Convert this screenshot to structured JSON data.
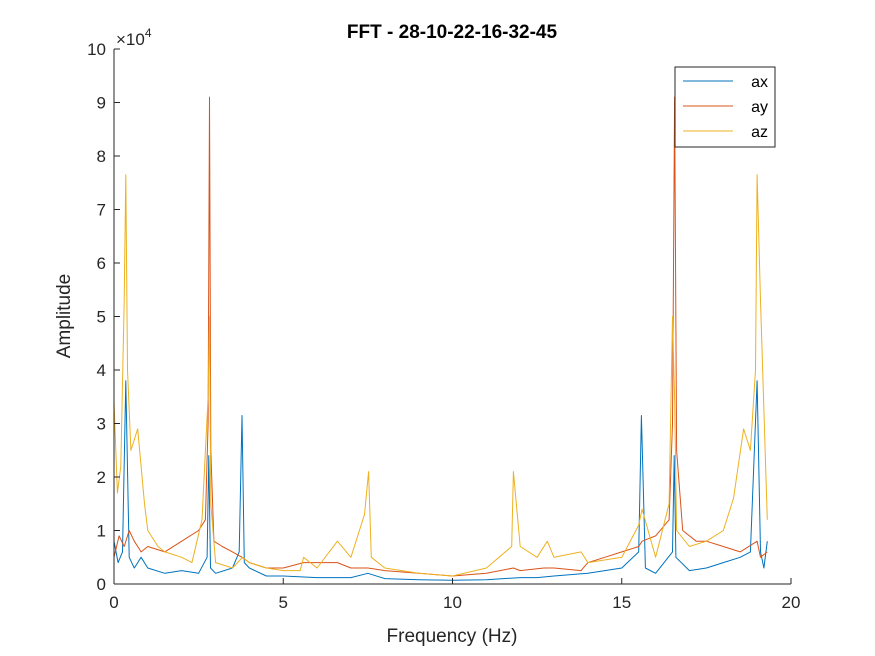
{
  "chart_data": {
    "type": "line",
    "title": "FFT - 28-10-22-16-32-45",
    "xlabel": "Frequency (Hz)",
    "ylabel": "Amplitude",
    "xlim": [
      0,
      20
    ],
    "ylim": [
      0,
      100000
    ],
    "y_exponent_label": "×10",
    "y_exponent_power": "4",
    "x_ticks": [
      0,
      5,
      10,
      15,
      20
    ],
    "x_tick_labels": [
      "0",
      "5",
      "10",
      "15",
      "20"
    ],
    "y_ticks": [
      0,
      10000,
      20000,
      30000,
      40000,
      50000,
      60000,
      70000,
      80000,
      90000,
      100000
    ],
    "y_tick_labels": [
      "0",
      "1",
      "2",
      "3",
      "4",
      "5",
      "6",
      "7",
      "8",
      "9",
      "10"
    ],
    "grid": false,
    "legend_position": "top-right",
    "series": [
      {
        "name": "ax",
        "color": "#0072BD",
        "x": [
          0,
          0.12,
          0.25,
          0.35,
          0.45,
          0.6,
          0.8,
          1.0,
          1.5,
          2.0,
          2.5,
          2.75,
          2.8,
          2.85,
          3.0,
          3.5,
          3.7,
          3.78,
          3.85,
          4.0,
          4.5,
          5.0,
          6.0,
          7.0,
          7.5,
          8.0,
          9.0,
          10.0,
          11.0,
          12.0,
          12.5,
          13.0,
          14.0,
          15.0,
          15.5,
          15.58,
          15.7,
          16.0,
          16.5,
          16.55,
          16.6,
          17.0,
          17.5,
          18.0,
          18.5,
          18.8,
          19.0,
          19.1,
          19.2,
          19.3
        ],
        "values": [
          8000,
          4000,
          6000,
          38000,
          5000,
          3000,
          5000,
          3000,
          2000,
          2500,
          2000,
          5000,
          24000,
          3000,
          2000,
          3000,
          6000,
          31500,
          4000,
          3000,
          1500,
          1500,
          1200,
          1200,
          2000,
          1000,
          800,
          700,
          800,
          1200,
          1200,
          1500,
          2000,
          3000,
          6000,
          31500,
          3000,
          2000,
          6000,
          24000,
          5000,
          2500,
          3000,
          4000,
          5000,
          6000,
          38000,
          6000,
          3000,
          8000
        ]
      },
      {
        "name": "ay",
        "color": "#D95319",
        "x": [
          0,
          0.15,
          0.3,
          0.45,
          0.6,
          0.8,
          1.0,
          1.5,
          2.0,
          2.5,
          2.7,
          2.78,
          2.82,
          2.86,
          2.95,
          3.2,
          3.5,
          3.78,
          4.0,
          4.5,
          5.0,
          5.6,
          6.0,
          6.6,
          7.0,
          7.5,
          8.0,
          9.0,
          10.0,
          11.0,
          11.8,
          12.0,
          12.7,
          13.0,
          13.8,
          14.0,
          14.5,
          15.0,
          15.5,
          15.6,
          16.0,
          16.4,
          16.5,
          16.56,
          16.62,
          16.8,
          17.2,
          17.5,
          18.0,
          18.5,
          19.0,
          19.1,
          19.3
        ],
        "values": [
          5000,
          9000,
          7000,
          10000,
          8000,
          6000,
          7000,
          6000,
          8000,
          10000,
          12000,
          30000,
          91000,
          25000,
          8000,
          7000,
          6000,
          5000,
          4000,
          3000,
          3000,
          4000,
          4000,
          4000,
          3000,
          3000,
          2500,
          2000,
          1500,
          2000,
          3000,
          2500,
          3000,
          3000,
          2500,
          4000,
          5000,
          6000,
          7000,
          8000,
          9000,
          12000,
          30000,
          91000,
          25000,
          10000,
          8000,
          8000,
          7000,
          6000,
          8000,
          5000,
          6000
        ]
      },
      {
        "name": "az",
        "color": "#EDB120",
        "x": [
          0,
          0.1,
          0.2,
          0.3,
          0.35,
          0.4,
          0.5,
          0.7,
          0.9,
          1.0,
          1.3,
          1.5,
          2.0,
          2.3,
          2.6,
          2.78,
          2.82,
          2.86,
          3.0,
          3.5,
          3.8,
          4.0,
          4.5,
          5.0,
          5.5,
          5.6,
          6.0,
          6.6,
          7.0,
          7.4,
          7.52,
          7.6,
          8.0,
          9.0,
          10.0,
          11.0,
          11.75,
          11.8,
          12.0,
          12.5,
          12.8,
          13.0,
          13.8,
          14.0,
          15.0,
          15.5,
          15.6,
          16.0,
          16.4,
          16.5,
          16.56,
          16.62,
          17.0,
          17.5,
          18.0,
          18.3,
          18.6,
          18.8,
          18.95,
          19.0,
          19.1,
          19.3
        ],
        "values": [
          34000,
          17000,
          22000,
          53000,
          76500,
          40000,
          25000,
          29000,
          15000,
          10000,
          7000,
          6000,
          5000,
          4000,
          12000,
          35000,
          50000,
          15000,
          4000,
          3000,
          5000,
          4000,
          3000,
          2500,
          2500,
          5000,
          3000,
          8000,
          5000,
          13000,
          21000,
          5000,
          3000,
          2000,
          1500,
          3000,
          7000,
          21000,
          7000,
          5000,
          8000,
          5000,
          6000,
          4000,
          5000,
          11000,
          14000,
          5000,
          15000,
          50000,
          35000,
          10000,
          7000,
          8000,
          10000,
          16000,
          29000,
          25000,
          40000,
          76500,
          53000,
          12000
        ]
      }
    ]
  }
}
